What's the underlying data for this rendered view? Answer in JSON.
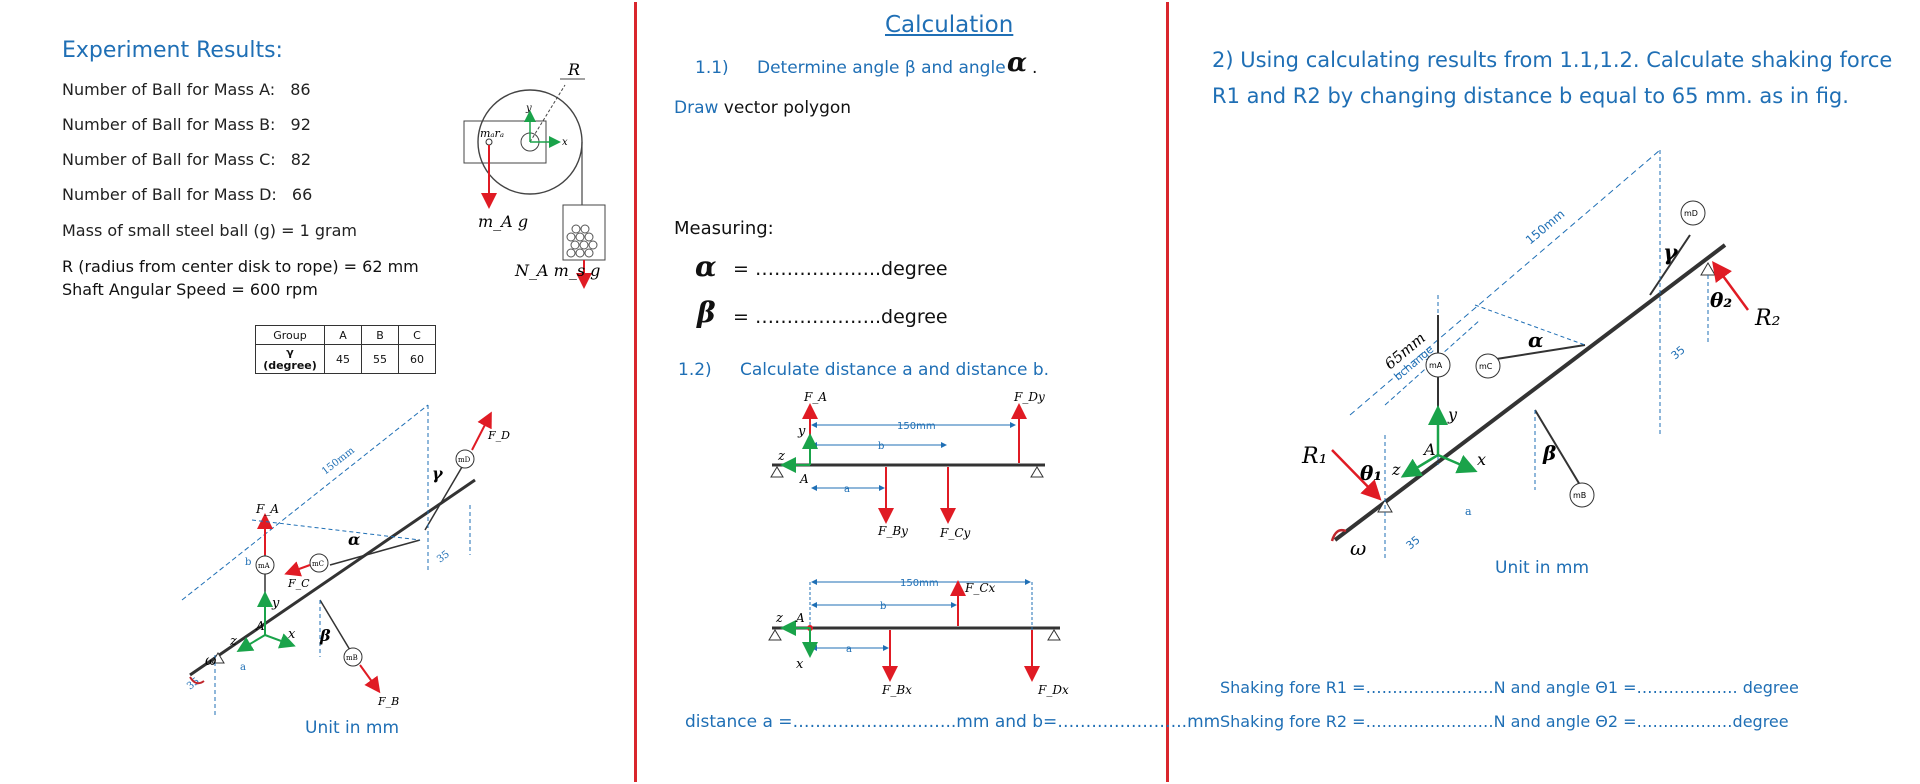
{
  "left": {
    "title": "Experiment Results:",
    "rows": [
      {
        "label": "Number of Ball for Mass A:",
        "value": "86"
      },
      {
        "label": "Number of Ball for Mass B:",
        "value": "92"
      },
      {
        "label": "Number of Ball for Mass C:",
        "value": "82"
      },
      {
        "label": "Number of Ball for Mass D:",
        "value": "66"
      }
    ],
    "mass_line": "Mass of small steel ball (g) = 1 gram",
    "radius_line": "R (radius from center disk to rope) = 62 mm",
    "speed_line": "Shaft Angular Speed = 600 rpm",
    "table": {
      "headers": [
        "Group",
        "A",
        "B",
        "C"
      ],
      "row_label": "γ (degree)",
      "row_values": [
        "45",
        "55",
        "60"
      ]
    },
    "disk_labels": {
      "R": "R",
      "mr": "mₐrₐ",
      "mag": "m_A g",
      "nams": "N_A m_s g",
      "x": "x",
      "y": "y"
    },
    "fig_unit": "Unit in mm",
    "fig_labels": {
      "dim150": "150mm",
      "dim35a": "35",
      "dim35b": "35",
      "a": "a",
      "b": "b",
      "FA": "F_A",
      "FB": "F_B",
      "FC": "F_C",
      "FD": "F_D",
      "mA": "mA",
      "mB": "mB",
      "mC": "mC",
      "mD": "mD",
      "alpha": "α",
      "beta": "β",
      "gamma": "γ",
      "omega": "ω",
      "x": "x",
      "y": "y",
      "z": "z",
      "A": "A"
    }
  },
  "middle": {
    "title": "Calculation",
    "step1_num": "1.1)",
    "step1_text": "Determine angle β and angle",
    "step1_alpha": "α",
    "step1_dot": ".",
    "draw_blue": "Draw",
    "draw_rest": " vector polygon",
    "measuring": "Measuring:",
    "alpha_sym": "α",
    "beta_sym": "β",
    "alpha_line": "= ………………..degree",
    "beta_line": "= ………………..degree",
    "step2_num": "1.2)",
    "step2_text": "Calculate distance a and distance b.",
    "diagram1": {
      "FA": "F_A",
      "FDy": "F_Dy",
      "FBy": "F_By",
      "FCy": "F_Cy",
      "dim": "150mm",
      "b": "b",
      "a": "a",
      "y": "y",
      "z": "z",
      "A": "A"
    },
    "diagram2": {
      "FCx": "F_Cx",
      "FBx": "F_Bx",
      "FDx": "F_Dx",
      "dim": "150mm",
      "b": "b",
      "a": "a",
      "x": "x",
      "z": "z",
      "A": "A"
    },
    "distance_line": "distance a  =………………………..mm and  b=…………………..mm"
  },
  "right": {
    "heading_line1": "2) Using calculating results from 1.1,1.2. Calculate shaking force",
    "heading_line2": "R1 and R2 by changing distance b equal to 65 mm. as in fig.",
    "fig_unit": "Unit in mm",
    "fig_labels": {
      "dim150": "150mm",
      "dim65": "65mm",
      "bchange": "bchange",
      "dim35a": "35",
      "dim35b": "35",
      "a": "a",
      "R1": "R₁",
      "R2": "R₂",
      "theta1": "θ₁",
      "theta2": "θ₂",
      "mA": "mA",
      "mB": "mB",
      "mC": "mC",
      "mD": "mD",
      "alpha": "α",
      "beta": "β",
      "gamma": "γ",
      "omega": "ω",
      "x": "x",
      "y": "y",
      "z": "z",
      "A": "A"
    },
    "shaking_r1": "Shaking fore R1 =……………………N and angle Θ1 =………………. degree",
    "shaking_r2": "Shaking fore R2 =……………………N and angle Θ2 =………………degree"
  }
}
